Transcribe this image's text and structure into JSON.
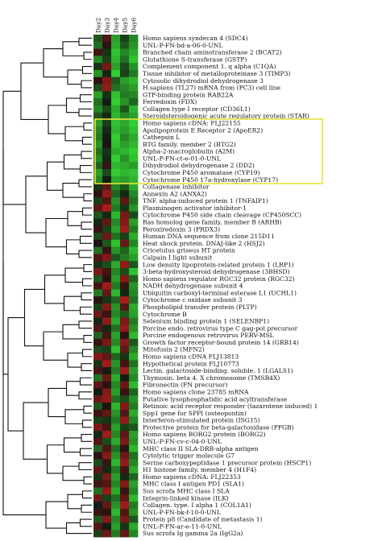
{
  "chart_data": {
    "type": "heatmap",
    "title": "",
    "columns": [
      "Day2",
      "Day3",
      "Day4",
      "Day5",
      "Day6"
    ],
    "genes": [
      "Homo sapiens syndecan 4 (SDC4)",
      "UNL-P-FN-bd-a-06-0-UNL",
      "Branched chain aminotransferase 2 (BCAT2)",
      "Glutathione S-transferase (GSTP)",
      "Complement component 1. q alpha (C1QA)",
      "Tissue inhibitor of metalloproteinase 3 (TIMP3)",
      "Cytosolic dihydrodiol dehydrogenase 3",
      "H.sapiens (TL27) mRNA from (PC3) cell line",
      "GTP-binding protein RAB22A",
      "Ferredoxin (FDX)",
      "Collagen type I receptor (CD36L1)",
      "Steroidsteroidogenic acute regulatory protein (STAR)",
      "Homo sapiens cDNA: FLJ22155",
      "Apolipoprotein E Receptor 2 (ApoER2)",
      "Cathepsin L",
      "BTG family. member 2 (BTG2)",
      "Alpha-2-macroglobulin (A2M)",
      "UNL-P-FN-ct-e-01-0-UNL",
      "Dihydrodiol dehydrogenase 2 (DD2)",
      "Cytochrome P450 aromatase (CYP19)",
      "Cytochrome P450 17a-hydroxylase (CYP17)",
      "Collagenase inhibitor",
      "Annexin A2 (ANXA2)",
      "TNF. alpha-induced protein 1 (TNFAIP1)",
      "Plasminogen activator inhibitor-1",
      "Cytochrome P450 side chain cleavage (CP450SCC)",
      "Ras homolog gene family, member B (ARHB)",
      "Peroxiredoxin 3 (PRDX3)",
      "Human DNA sequence from clone 215D11",
      "Heat shock protein. DNAJ-like 2 (HSJ2)",
      "Cricetulus griseus HT protein",
      "Calpain I light subunit",
      "Low density lipoprotein-related protein 1 (LRP1)",
      "3-beta-hydroxysteroid dehydrogenase (3BHSD)",
      "Homo sapiens regulator RGC32 protein (RGC32)",
      "NADH dehydrogenase subunit 4",
      "Ubiquitin carboxyl-terminal esterase L1 (UCHL1)",
      "Cytochrome c oxidase subunit 3",
      "Phospholipid transfer protein (PLTP)",
      "Cytochrome B",
      "Selenium binding protein 1 (SELENBP1)",
      "Porcine endo. retrovirus type C gag-pol precursor",
      "Porcine endogenous retrovirus PERV-MSL",
      "Growth factor receptor-bound protein 14 (GRB14)",
      "Mitofusin 2 (MFN2)",
      "Homo sapiens cDNA FLJ13813",
      "Hypothetical protein FLJ10773",
      "Lectin. galactoside-binding. soluble. 1 (LGALS1)",
      "Thymosin. beta 4. X chromosome (TMSB4X)",
      "Fibronectin (FN precursor)",
      "Homo sapiens clone 23785 mRNA",
      "Putative lysophosphatidic acid acyltransferase",
      "Retinoic acid receptor responder (tazarotene induced) 1",
      "Spp1 gene for SPPI (osteopontin)",
      "Interferon-stimulated protein (ISG15)",
      "Protective protein for beta-galactosidase (PPGB)",
      "Homo sapiens BORG2 protein (BORG2)",
      "UNL-P-FN-cv-c-04-0-UNL",
      "MHC class II SLA-DRB-alpha antigen",
      "Cytolytic trigger molecule G7",
      "Serine carboxypeptidase 1 precursor protein (HSCP1)",
      "H1 histone family. member 4 (H1F4)",
      "Homo sapiens cDNA: FLJ22353",
      "MHC class I antigen PD1 (SLA1)",
      "Sus scrofa MHC class I SLA",
      "Integrin-linked kinase (ILK)",
      "Collagen. type. I alpha 1 (COL1A1)",
      "UNL-P-FN-bk-f-10-0-UNL",
      "Protein p8 (Candidate of metastasis 1)",
      "UNL-P-FN-ar-e-11-0-UNL",
      "Sus scrofa Ig gamma 2a (IgG2a)"
    ],
    "values": [
      [
        -0.6,
        0.5,
        -1.2,
        -0.4,
        -1.0
      ],
      [
        -0.8,
        0.2,
        -1.3,
        -0.6,
        -1.1
      ],
      [
        0.4,
        -0.3,
        -1.5,
        -1.0,
        -1.3
      ],
      [
        -1.0,
        -0.4,
        -1.4,
        -0.8,
        -1.5
      ],
      [
        -0.3,
        0.8,
        -1.2,
        -0.5,
        -1.1
      ],
      [
        -1.1,
        -0.2,
        -1.6,
        -0.4,
        -0.9
      ],
      [
        0.2,
        0.9,
        -0.6,
        -1.2,
        -1.4
      ],
      [
        -0.5,
        1.0,
        -0.8,
        -1.0,
        -1.2
      ],
      [
        -1.2,
        -0.3,
        -1.5,
        -0.9,
        -1.0
      ],
      [
        -0.8,
        -0.1,
        -1.6,
        -1.1,
        -0.7
      ],
      [
        -1.0,
        -0.5,
        -1.3,
        -0.6,
        -1.4
      ],
      [
        -0.6,
        -0.2,
        -1.4,
        -1.0,
        -1.2
      ],
      [
        -1.2,
        -0.4,
        -1.5,
        -1.3,
        -1.6
      ],
      [
        -1.0,
        -0.2,
        -1.4,
        -1.2,
        -1.5
      ],
      [
        -0.9,
        -0.1,
        -1.6,
        -1.0,
        -1.3
      ],
      [
        -1.1,
        0.1,
        -1.5,
        -1.2,
        -1.4
      ],
      [
        -0.8,
        -0.3,
        -1.3,
        -1.4,
        -1.6
      ],
      [
        -1.0,
        -0.2,
        -1.6,
        -1.1,
        -1.5
      ],
      [
        -0.7,
        0.3,
        -1.4,
        -1.3,
        -1.2
      ],
      [
        -1.2,
        -0.5,
        -1.6,
        -1.4,
        -1.5
      ],
      [
        -1.0,
        -0.1,
        -1.3,
        -1.2,
        -1.4
      ],
      [
        -0.3,
        0.6,
        -1.0,
        -0.6,
        -1.3
      ],
      [
        0.2,
        1.0,
        -0.7,
        -0.2,
        -1.0
      ],
      [
        -0.4,
        0.5,
        -1.1,
        0.6,
        -0.8
      ],
      [
        0.6,
        1.2,
        -0.9,
        -0.3,
        -1.1
      ],
      [
        -0.6,
        -0.2,
        -1.4,
        0.8,
        -0.5
      ],
      [
        -0.2,
        0.6,
        -1.0,
        0.9,
        -1.2
      ],
      [
        0.3,
        -0.4,
        -1.2,
        1.1,
        -0.9
      ],
      [
        -0.5,
        0.7,
        -0.8,
        -0.4,
        -1.3
      ],
      [
        0.1,
        -0.6,
        -1.5,
        0.7,
        -1.0
      ],
      [
        -0.8,
        0.3,
        -1.1,
        -0.7,
        -1.4
      ],
      [
        0.5,
        0.9,
        -0.6,
        -0.9,
        -1.2
      ],
      [
        -0.3,
        -0.5,
        -1.3,
        1.0,
        -0.6
      ],
      [
        0.8,
        0.4,
        -1.0,
        -0.5,
        -1.5
      ],
      [
        -0.6,
        0.2,
        -1.2,
        0.9,
        -0.7
      ],
      [
        0.4,
        1.1,
        -0.9,
        0.3,
        -1.1
      ],
      [
        -0.9,
        0.6,
        -1.4,
        -0.2,
        -1.0
      ],
      [
        0.2,
        -0.3,
        -0.7,
        1.2,
        -0.8
      ],
      [
        -0.4,
        0.9,
        -1.1,
        0.5,
        -1.3
      ],
      [
        0.7,
        0.3,
        -1.0,
        -0.6,
        -1.2
      ],
      [
        -0.2,
        1.0,
        -1.3,
        0.8,
        -0.9
      ],
      [
        0.5,
        -0.2,
        -0.8,
        1.0,
        -1.1
      ],
      [
        -0.7,
        0.4,
        -1.2,
        0.2,
        -1.4
      ],
      [
        0.3,
        0.8,
        -1.0,
        0.9,
        -0.6
      ],
      [
        -0.5,
        -0.4,
        -1.5,
        0.6,
        -1.0
      ],
      [
        0.9,
        0.6,
        -0.7,
        -0.3,
        -1.3
      ],
      [
        -0.3,
        1.1,
        -1.1,
        0.4,
        -0.8
      ],
      [
        0.4,
        -0.1,
        -0.9,
        1.1,
        -1.2
      ],
      [
        -0.8,
        0.7,
        -1.3,
        -0.1,
        -1.0
      ],
      [
        0.6,
        0.2,
        -1.0,
        0.7,
        -1.4
      ],
      [
        -0.1,
        0.9,
        -1.2,
        0.3,
        -0.7
      ],
      [
        0.7,
        1.0,
        -0.8,
        -0.5,
        -1.1
      ],
      [
        -0.6,
        0.1,
        -1.4,
        0.9,
        -0.9
      ],
      [
        0.3,
        0.6,
        -1.1,
        0.5,
        -1.3
      ],
      [
        -0.4,
        -0.3,
        -0.9,
        1.0,
        -1.0
      ],
      [
        0.8,
        0.4,
        -1.2,
        -0.4,
        -0.6
      ],
      [
        -0.2,
        1.1,
        -1.0,
        0.6,
        -1.2
      ],
      [
        0.5,
        -0.5,
        -1.3,
        0.8,
        -1.1
      ],
      [
        -0.7,
        0.5,
        -0.8,
        0.2,
        -1.4
      ],
      [
        0.2,
        0.9,
        -1.1,
        0.7,
        -0.8
      ],
      [
        -0.5,
        0.3,
        -1.4,
        1.0,
        -1.0
      ],
      [
        0.6,
        -0.2,
        -0.9,
        0.4,
        -1.3
      ],
      [
        -0.3,
        0.8,
        -1.2,
        -0.2,
        -0.7
      ],
      [
        0.4,
        0.5,
        -1.0,
        0.9,
        -1.2
      ],
      [
        -0.8,
        1.0,
        -1.3,
        0.3,
        -1.0
      ],
      [
        0.7,
        -0.4,
        -0.8,
        0.6,
        -1.4
      ],
      [
        -0.1,
        0.6,
        -1.1,
        1.1,
        -0.9
      ],
      [
        0.3,
        0.2,
        -1.4,
        0.5,
        -1.1
      ],
      [
        -0.6,
        0.9,
        -1.0,
        0.8,
        -0.6
      ],
      [
        0.5,
        -0.1,
        -1.2,
        -0.3,
        -1.3
      ],
      [
        -0.4,
        0.7,
        -0.9,
        0.6,
        -1.0
      ]
    ],
    "highlight": {
      "from_gene_index": 12,
      "to_gene_index": 20,
      "color": "#e8e23a"
    },
    "color_scale": {
      "low": "#33cc33",
      "mid": "#111111",
      "high": "#e02020",
      "min": -1.6,
      "max": 1.6
    }
  }
}
